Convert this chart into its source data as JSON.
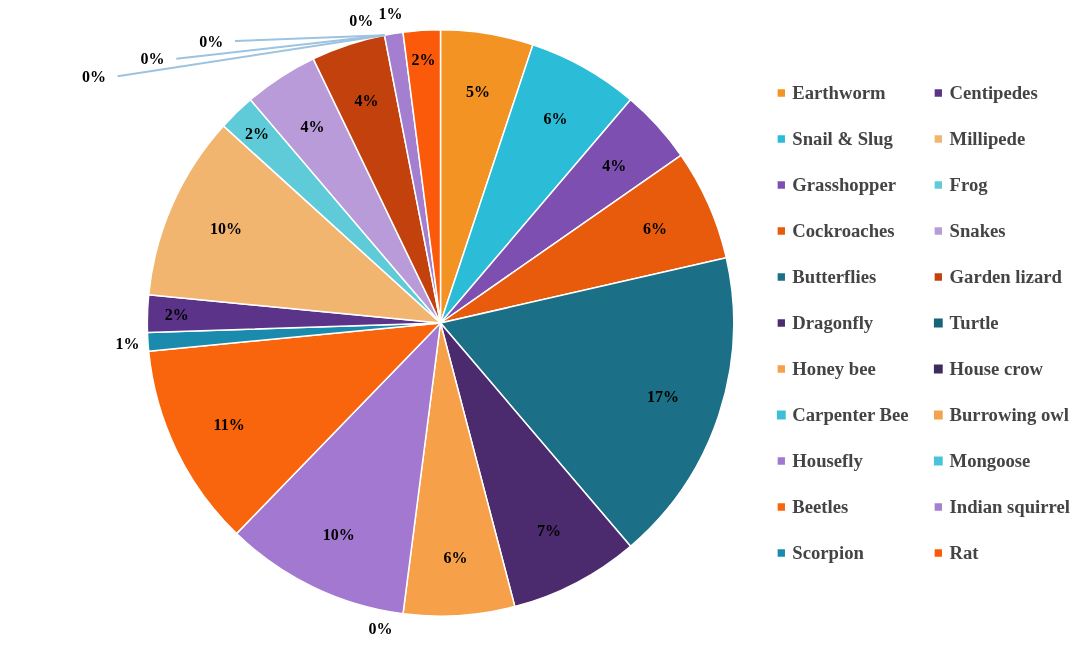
{
  "chart_data": {
    "type": "pie",
    "legend": "right",
    "categories": [
      "Earthworm",
      "Snail & Slug",
      "Grasshopper",
      "Cockroaches",
      "Butterflies",
      "Dragonfly",
      "Honey bee",
      "Carpenter Bee",
      "Housefly",
      "Beetles",
      "Scorpion",
      "Centipedes",
      "Millipede",
      "Frog",
      "Snakes",
      "Garden lizard",
      "Turtle",
      "House crow",
      "Burrowing owl",
      "Mongoose",
      "Indian squirrel",
      "Rat"
    ],
    "values": [
      5,
      6,
      4,
      6,
      17,
      7,
      6,
      0,
      10,
      11,
      1,
      2,
      10,
      2,
      4,
      4,
      0,
      0,
      0,
      0,
      1,
      2
    ],
    "value_labels": [
      "5%",
      "6%",
      "4%",
      "6%",
      "17%",
      "7%",
      "6%",
      "0%",
      "10%",
      "11%",
      "1%",
      "2%",
      "10%",
      "2%",
      "4%",
      "4%",
      "0%",
      "0%",
      "0%",
      "0%",
      "1%",
      "2%"
    ],
    "colors": [
      "#f39323",
      "#2bbcd8",
      "#7d4fb0",
      "#e85a0c",
      "#1b6f87",
      "#4b2b6e",
      "#f6a04a",
      "#3dbfd6",
      "#a278d0",
      "#f9650c",
      "#1a8aad",
      "#5b3489",
      "#f1b56f",
      "#5fcbd8",
      "#b89bd8",
      "#c2410c",
      "#17637a",
      "#3e2a5c",
      "#f2a350",
      "#49c3d8",
      "#a47fd0",
      "#fa5a0a"
    ]
  }
}
